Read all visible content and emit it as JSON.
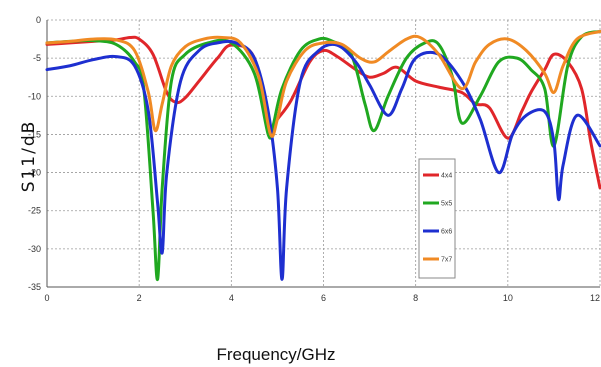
{
  "chart_data": {
    "type": "line",
    "title": "",
    "xlabel": "Frequency/GHz",
    "ylabel": "S11/dB",
    "xlim": [
      0,
      12
    ],
    "ylim": [
      -35,
      0
    ],
    "x_ticks": [
      "0",
      "2",
      "4",
      "6",
      "8",
      "10",
      "12"
    ],
    "y_ticks": [
      "0",
      "-5",
      "-10",
      "-15",
      "-20",
      "-25",
      "-30",
      "-35"
    ],
    "grid": true,
    "legend_position": "inside-right",
    "series": [
      {
        "name": "4x4",
        "color": "#e0262a",
        "x": [
          0,
          0.5,
          1.0,
          1.5,
          1.8,
          2.0,
          2.3,
          2.6,
          2.8,
          3.0,
          3.3,
          3.7,
          4.0,
          4.5,
          4.8,
          5.0,
          5.3,
          5.7,
          6.0,
          6.3,
          6.7,
          7.0,
          7.3,
          7.6,
          8.0,
          8.5,
          9.0,
          9.3,
          9.6,
          10.0,
          10.3,
          10.5,
          10.8,
          11.0,
          11.3,
          11.6,
          11.8,
          12.0
        ],
        "y": [
          -3.2,
          -3.0,
          -2.8,
          -2.6,
          -2.3,
          -2.5,
          -4.5,
          -9.5,
          -10.8,
          -10.2,
          -8.0,
          -5.0,
          -3.3,
          -5.0,
          -14.5,
          -13.0,
          -10.5,
          -5.5,
          -4.0,
          -4.8,
          -6.5,
          -7.5,
          -7.0,
          -6.2,
          -8.0,
          -8.8,
          -9.5,
          -11.0,
          -11.5,
          -15.5,
          -12.0,
          -9.5,
          -6.5,
          -4.5,
          -5.5,
          -9.0,
          -16.0,
          -22.0
        ]
      },
      {
        "name": "5x5",
        "color": "#20a820",
        "x": [
          0,
          0.5,
          1.0,
          1.5,
          1.9,
          2.1,
          2.3,
          2.4,
          2.5,
          2.7,
          3.0,
          3.5,
          4.0,
          4.5,
          4.8,
          4.9,
          5.1,
          5.5,
          5.9,
          6.2,
          6.6,
          6.9,
          7.1,
          7.4,
          7.8,
          8.2,
          8.5,
          8.8,
          9.0,
          9.4,
          9.8,
          10.2,
          10.5,
          10.8,
          11.0,
          11.3,
          11.6,
          12.0
        ],
        "y": [
          -3.0,
          -2.8,
          -2.7,
          -3.2,
          -5.5,
          -9.0,
          -25.0,
          -34.0,
          -22.0,
          -8.0,
          -4.5,
          -3.0,
          -3.0,
          -7.0,
          -15.0,
          -14.0,
          -9.0,
          -4.0,
          -2.5,
          -2.8,
          -4.5,
          -11.0,
          -14.5,
          -10.0,
          -5.0,
          -3.0,
          -3.2,
          -7.5,
          -13.5,
          -10.0,
          -5.5,
          -5.0,
          -6.5,
          -9.0,
          -16.5,
          -6.0,
          -2.2,
          -1.5
        ]
      },
      {
        "name": "6x6",
        "color": "#1e2fd0",
        "x": [
          0,
          0.5,
          1.0,
          1.5,
          1.9,
          2.2,
          2.4,
          2.5,
          2.6,
          2.9,
          3.3,
          3.7,
          4.1,
          4.5,
          4.8,
          5.0,
          5.1,
          5.2,
          5.5,
          5.9,
          6.3,
          6.7,
          7.0,
          7.4,
          7.7,
          8.0,
          8.5,
          9.0,
          9.4,
          9.8,
          10.1,
          10.4,
          10.8,
          11.0,
          11.1,
          11.2,
          11.5,
          12.0
        ],
        "y": [
          -6.5,
          -6.0,
          -5.2,
          -4.8,
          -6.0,
          -12.0,
          -24.0,
          -30.5,
          -20.0,
          -8.0,
          -4.0,
          -3.0,
          -3.0,
          -5.0,
          -12.0,
          -22.0,
          -34.0,
          -22.0,
          -8.0,
          -4.0,
          -3.3,
          -5.5,
          -8.5,
          -12.5,
          -9.0,
          -5.0,
          -4.5,
          -8.0,
          -13.0,
          -20.0,
          -15.0,
          -12.5,
          -12.0,
          -16.0,
          -23.5,
          -19.0,
          -12.5,
          -16.5
        ]
      },
      {
        "name": "7x7",
        "color": "#f08a24",
        "x": [
          0,
          0.5,
          1.0,
          1.5,
          1.9,
          2.2,
          2.35,
          2.5,
          2.7,
          3.0,
          3.4,
          3.8,
          4.2,
          4.6,
          4.85,
          5.0,
          5.2,
          5.6,
          6.0,
          6.4,
          6.8,
          7.1,
          7.4,
          7.8,
          8.1,
          8.5,
          9.0,
          9.3,
          9.6,
          10.0,
          10.4,
          10.8,
          11.0,
          11.2,
          11.5,
          12.0
        ],
        "y": [
          -3.0,
          -2.8,
          -2.5,
          -2.6,
          -4.0,
          -9.5,
          -14.5,
          -11.0,
          -6.0,
          -3.5,
          -2.5,
          -2.3,
          -3.0,
          -7.5,
          -15.0,
          -13.0,
          -8.0,
          -4.0,
          -3.0,
          -3.2,
          -5.0,
          -5.5,
          -4.2,
          -2.5,
          -2.3,
          -4.5,
          -9.0,
          -5.5,
          -3.2,
          -2.5,
          -4.0,
          -7.0,
          -9.5,
          -6.0,
          -2.5,
          -1.5
        ]
      }
    ]
  }
}
